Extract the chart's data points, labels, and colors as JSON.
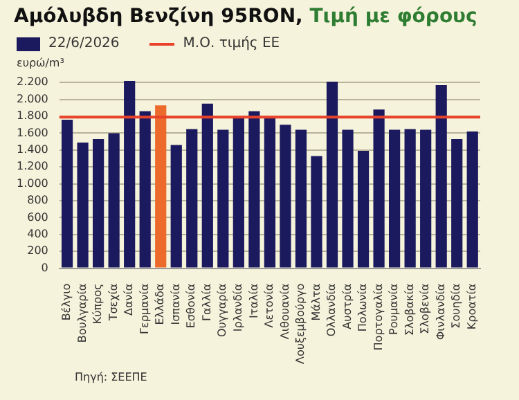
{
  "chart_data": {
    "type": "bar",
    "title": "Αμόλυβδη Βενζίνη 95RON,",
    "subtitle": "Τιμή με φόρους",
    "ylabel": "ευρώ/m³",
    "categories": [
      "Βέλγιο",
      "Βουλγαρία",
      "Κύπρος",
      "Τσεχία",
      "Δανία",
      "Γερμανία",
      "Ελλάδα",
      "Ισπανία",
      "Εσθονία",
      "Γαλλία",
      "Ουγγαρία",
      "Ιρλανδία",
      "Ιταλία",
      "Λετονία",
      "Λιθουανία",
      "Λουξεμβούργο",
      "Μάλτα",
      "Ολλανδία",
      "Αυστρία",
      "Πολωνία",
      "Πορτογαλία",
      "Ρουμανία",
      "Σλοβακία",
      "Σλοβενία",
      "Φινλανδία",
      "Σουηδία",
      "Κροατία"
    ],
    "series": [
      {
        "name": "22/6/2026",
        "color": "#1c1a5e",
        "colors": [
          "#1c1a5e",
          "#1c1a5e",
          "#1c1a5e",
          "#1c1a5e",
          "#1c1a5e",
          "#1c1a5e",
          "#ec6a2c",
          "#1c1a5e",
          "#1c1a5e",
          "#1c1a5e",
          "#1c1a5e",
          "#1c1a5e",
          "#1c1a5e",
          "#1c1a5e",
          "#1c1a5e",
          "#1c1a5e",
          "#1c1a5e",
          "#1c1a5e",
          "#1c1a5e",
          "#1c1a5e",
          "#1c1a5e",
          "#1c1a5e",
          "#1c1a5e",
          "#1c1a5e",
          "#1c1a5e",
          "#1c1a5e",
          "#1c1a5e"
        ],
        "values": [
          1760,
          1490,
          1530,
          1600,
          2220,
          1860,
          1930,
          1460,
          1650,
          1950,
          1640,
          1800,
          1860,
          1800,
          1700,
          1640,
          1330,
          2210,
          1640,
          1390,
          1880,
          1640,
          1650,
          1640,
          2170,
          1530,
          1620
        ]
      }
    ],
    "ylim": [
      0,
      2260
    ],
    "yticks": [
      0,
      200,
      400,
      600,
      800,
      {
        "value": 1000,
        "label": "1.000"
      },
      {
        "value": 1200,
        "label": "1.200"
      },
      {
        "value": 1400,
        "label": "1.400"
      },
      {
        "value": 1600,
        "label": "1.600"
      },
      {
        "value": 1800,
        "label": "1.800"
      },
      {
        "value": 2000,
        "label": "2.000"
      },
      {
        "value": 2200,
        "label": "2.200"
      }
    ],
    "ref_lines": [
      {
        "axis": "y",
        "value": 1790,
        "label": "Μ.Ο. τιμής ΕΕ",
        "color": "#e8432a"
      }
    ],
    "grid": "y",
    "legend": "top left",
    "annotations": [
      "Πηγή: ΣΕΕΠΕ"
    ]
  }
}
